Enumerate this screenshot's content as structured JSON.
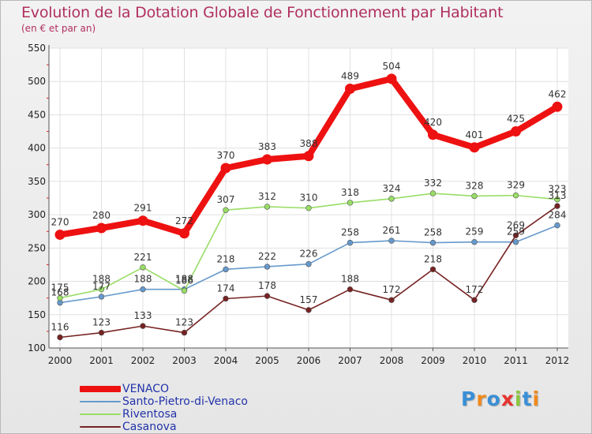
{
  "chart_data": {
    "type": "line",
    "title": "Evolution de la Dotation Globale de Fonctionnement par Habitant",
    "subtitle": "(en € et par an)",
    "xlabel": "",
    "ylabel": "",
    "categories": [
      "2000",
      "2001",
      "2002",
      "2003",
      "2004",
      "2005",
      "2006",
      "2007",
      "2008",
      "2009",
      "2010",
      "2011",
      "2012"
    ],
    "ylim": [
      100,
      550
    ],
    "yticks": [
      100,
      150,
      200,
      250,
      300,
      350,
      400,
      450,
      500,
      550
    ],
    "grid": true,
    "legend_position": "bottom-left",
    "series": [
      {
        "name": "VENACO",
        "color": "#ee1111",
        "emphasis": true,
        "values": [
          270,
          280,
          291,
          272,
          370,
          383,
          388,
          489,
          504,
          420,
          401,
          425,
          462
        ]
      },
      {
        "name": "Santo-Pietro-di-Venaco",
        "color": "#6699cc",
        "values": [
          168,
          177,
          188,
          188,
          218,
          222,
          226,
          258,
          261,
          258,
          259,
          259,
          284
        ]
      },
      {
        "name": "Riventosa",
        "color": "#99dd66",
        "values": [
          175,
          188,
          221,
          186,
          307,
          312,
          310,
          318,
          324,
          332,
          328,
          329,
          323
        ]
      },
      {
        "name": "Casanova",
        "color": "#772222",
        "values": [
          116,
          123,
          133,
          123,
          174,
          178,
          157,
          188,
          172,
          218,
          172,
          269,
          313
        ]
      }
    ]
  },
  "branding": {
    "letters": [
      "P",
      "r",
      "o",
      "x",
      "i",
      "t",
      "i"
    ],
    "colors": [
      "#3a8fd6",
      "#f08a1c",
      "#3a8fd6",
      "#e8332e",
      "#8cc63f",
      "#3a8fd6",
      "#f08a1c"
    ]
  }
}
